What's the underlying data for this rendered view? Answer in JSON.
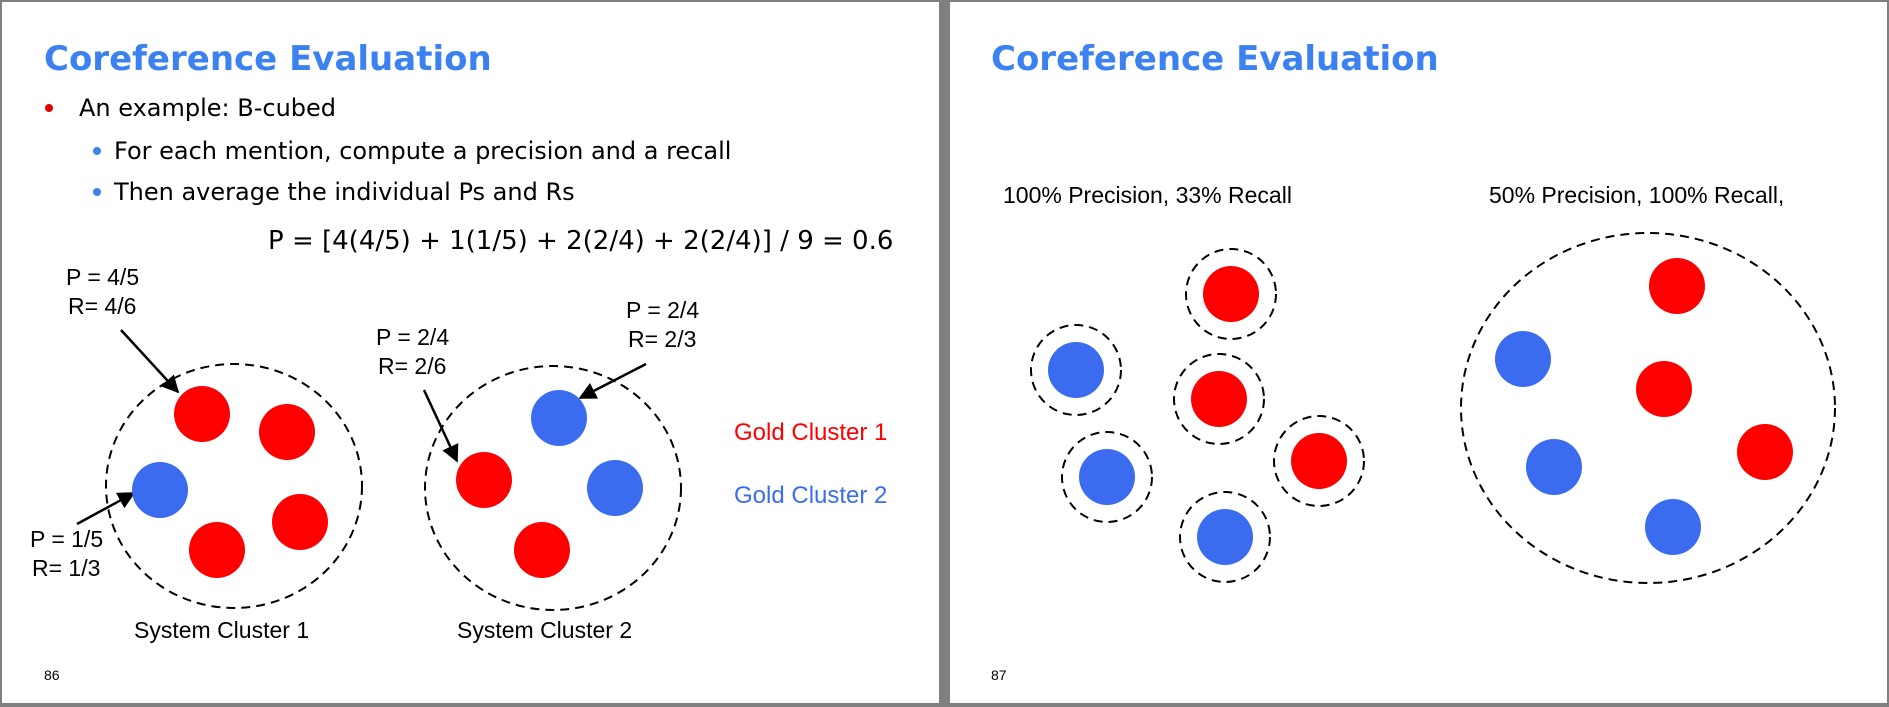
{
  "colors": {
    "title": "#3b82f0",
    "red_bullet": "#e00000",
    "blue_bullet": "#3b82f0",
    "gold1": "#ff0000",
    "gold2": "#3b6cf0"
  },
  "slide86": {
    "title": "Coreference Evaluation",
    "bullet1": "An example: B-cubed",
    "sub1": "For each mention, compute a precision and a recall",
    "sub2": "Then average the individual Ps and Rs",
    "formula": "P = [4(4/5) + 1(1/5) + 2(2/4) + 2(2/4)] / 9 = 0.6",
    "annotations": {
      "a1_p": "P = 4/5",
      "a1_r": "R= 4/6",
      "a2_p": "P = 2/4",
      "a2_r": "R= 2/6",
      "a3_p": "P = 2/4",
      "a3_r": "R= 2/3",
      "a4_p": "P = 1/5",
      "a4_r": "R= 1/3"
    },
    "legend": {
      "gold1": "Gold Cluster 1",
      "gold2": "Gold Cluster 2"
    },
    "cluster1_label": "System Cluster 1",
    "cluster2_label": "System Cluster 2",
    "page": "86"
  },
  "slide87": {
    "title": "Coreference Evaluation",
    "left_caption": "100% Precision, 33% Recall",
    "right_caption": "50% Precision, 100% Recall,",
    "page": "87"
  }
}
